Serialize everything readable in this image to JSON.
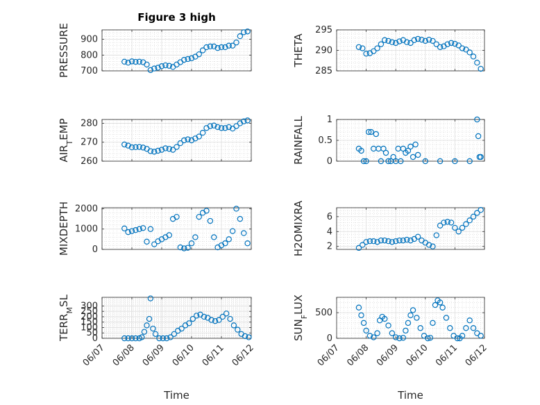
{
  "figure": {
    "title": "Figure 3 high",
    "marker_color": "#0072BD",
    "background": "#ffffff"
  },
  "chart_data": [
    {
      "type": "scatter",
      "ylabel": "PRESSURE",
      "xlabel": "",
      "title": "Figure 3 high",
      "ylim": [
        700,
        960
      ],
      "yticks": [
        "700",
        "800",
        "900"
      ],
      "xticks": [],
      "grid": true,
      "x": [
        "06/07 18:00",
        "06/07 21:00",
        "06/08 00:00",
        "06/08 03:00",
        "06/08 06:00",
        "06/08 09:00",
        "06/08 12:00",
        "06/08 15:00",
        "06/08 18:00",
        "06/08 21:00",
        "06/09 00:00",
        "06/09 03:00",
        "06/09 06:00",
        "06/09 09:00",
        "06/09 12:00",
        "06/09 15:00",
        "06/09 18:00",
        "06/09 21:00",
        "06/10 00:00",
        "06/10 03:00",
        "06/10 06:00",
        "06/10 09:00",
        "06/10 12:00",
        "06/10 15:00",
        "06/10 18:00",
        "06/10 21:00",
        "06/11 00:00",
        "06/11 03:00",
        "06/11 06:00",
        "06/11 09:00",
        "06/11 12:00",
        "06/11 15:00",
        "06/11 18:00",
        "06/11 21:00"
      ],
      "y": [
        758,
        752,
        760,
        757,
        758,
        755,
        740,
        705,
        715,
        720,
        730,
        735,
        732,
        725,
        740,
        755,
        770,
        775,
        780,
        790,
        805,
        830,
        850,
        855,
        855,
        845,
        850,
        850,
        860,
        860,
        880,
        920,
        945,
        950
      ]
    },
    {
      "type": "scatter",
      "ylabel": "THETA",
      "xlabel": "",
      "ylim": [
        285,
        295
      ],
      "yticks": [
        "285",
        "290",
        "295"
      ],
      "xticks": [],
      "grid": true,
      "x": [
        "06/07 18:00",
        "06/07 21:00",
        "06/08 00:00",
        "06/08 03:00",
        "06/08 06:00",
        "06/08 09:00",
        "06/08 12:00",
        "06/08 15:00",
        "06/08 18:00",
        "06/08 21:00",
        "06/09 00:00",
        "06/09 03:00",
        "06/09 06:00",
        "06/09 09:00",
        "06/09 12:00",
        "06/09 15:00",
        "06/09 18:00",
        "06/09 21:00",
        "06/10 00:00",
        "06/10 03:00",
        "06/10 06:00",
        "06/10 09:00",
        "06/10 12:00",
        "06/10 15:00",
        "06/10 18:00",
        "06/10 21:00",
        "06/11 00:00",
        "06/11 03:00",
        "06/11 06:00",
        "06/11 09:00",
        "06/11 12:00",
        "06/11 15:00",
        "06/11 18:00",
        "06/11 21:00"
      ],
      "y": [
        290.8,
        290.5,
        289.2,
        289.3,
        289.8,
        290.5,
        291.5,
        292.5,
        292.3,
        292,
        291.8,
        292.2,
        292.5,
        292,
        291.8,
        292.5,
        292.8,
        292.6,
        292.3,
        292.6,
        292.3,
        291.5,
        290.8,
        291,
        291.5,
        291.8,
        291.6,
        291.2,
        290.5,
        290.2,
        289.5,
        288.5,
        287.0,
        285.5
      ]
    },
    {
      "type": "scatter",
      "ylabel": "AIR_TEMP",
      "xlabel": "",
      "ylim": [
        260,
        282
      ],
      "yticks": [
        "260",
        "270",
        "280"
      ],
      "xticks": [],
      "grid": true,
      "x": [
        "06/07 18:00",
        "06/07 21:00",
        "06/08 00:00",
        "06/08 03:00",
        "06/08 06:00",
        "06/08 09:00",
        "06/08 12:00",
        "06/08 15:00",
        "06/08 18:00",
        "06/08 21:00",
        "06/09 00:00",
        "06/09 03:00",
        "06/09 06:00",
        "06/09 09:00",
        "06/09 12:00",
        "06/09 15:00",
        "06/09 18:00",
        "06/09 21:00",
        "06/10 00:00",
        "06/10 03:00",
        "06/10 06:00",
        "06/10 09:00",
        "06/10 12:00",
        "06/10 15:00",
        "06/10 18:00",
        "06/10 21:00",
        "06/11 00:00",
        "06/11 03:00",
        "06/11 06:00",
        "06/11 09:00",
        "06/11 12:00",
        "06/11 15:00",
        "06/11 18:00",
        "06/11 21:00"
      ],
      "y": [
        268.8,
        268.2,
        267.3,
        267.4,
        267.5,
        267.2,
        266.5,
        265.3,
        265.0,
        265.5,
        266.0,
        266.8,
        266.5,
        266.0,
        267.5,
        269.5,
        271.0,
        271.5,
        271.0,
        272.0,
        273.0,
        275.0,
        277.5,
        278.5,
        278.8,
        278.0,
        277.5,
        277.5,
        278.0,
        277.2,
        278.5,
        280.0,
        281.0,
        281.5
      ]
    },
    {
      "type": "scatter",
      "ylabel": "RAINFALL",
      "xlabel": "",
      "ylim": [
        0,
        1
      ],
      "yticks": [
        "0",
        "0.5",
        "1"
      ],
      "xticks": [],
      "grid": true,
      "x": [
        "06/07 18:00",
        "06/07 20:00",
        "06/07 22:00",
        "06/08 00:00",
        "06/08 02:00",
        "06/08 04:00",
        "06/08 06:00",
        "06/08 08:00",
        "06/08 10:00",
        "06/08 12:00",
        "06/08 14:00",
        "06/08 16:00",
        "06/08 18:00",
        "06/08 20:00",
        "06/08 22:00",
        "06/09 00:00",
        "06/09 02:00",
        "06/09 04:00",
        "06/09 06:00",
        "06/09 08:00",
        "06/09 10:00",
        "06/09 12:00",
        "06/09 14:00",
        "06/09 16:00",
        "06/09 18:00",
        "06/10 00:00",
        "06/10 12:00",
        "06/11 00:00",
        "06/11 12:00",
        "06/11 18:00",
        "06/11 19:00",
        "06/11 20:00",
        "06/11 21:00"
      ],
      "y": [
        0.3,
        0.25,
        0.0,
        0.0,
        0.7,
        0.7,
        0.3,
        0.65,
        0.3,
        0.0,
        0.3,
        0.2,
        0.0,
        0.0,
        0.1,
        0.0,
        0.3,
        0.0,
        0.3,
        0.2,
        0.25,
        0.35,
        0.1,
        0.4,
        0.15,
        0.0,
        0.0,
        0.0,
        0.0,
        1.0,
        0.6,
        0.1,
        0.1
      ]
    },
    {
      "type": "scatter",
      "ylabel": "MIXDEPTH",
      "xlabel": "",
      "ylim": [
        0,
        2050
      ],
      "yticks": [
        "0",
        "1000",
        "2000"
      ],
      "xticks": [],
      "grid": true,
      "x": [
        "06/07 18:00",
        "06/07 21:00",
        "06/08 00:00",
        "06/08 03:00",
        "06/08 06:00",
        "06/08 09:00",
        "06/08 12:00",
        "06/08 15:00",
        "06/08 18:00",
        "06/08 21:00",
        "06/09 00:00",
        "06/09 03:00",
        "06/09 06:00",
        "06/09 09:00",
        "06/09 12:00",
        "06/09 15:00",
        "06/09 18:00",
        "06/09 21:00",
        "06/10 00:00",
        "06/10 03:00",
        "06/10 06:00",
        "06/10 09:00",
        "06/10 12:00",
        "06/10 15:00",
        "06/10 18:00",
        "06/10 21:00",
        "06/11 00:00",
        "06/11 03:00",
        "06/11 06:00",
        "06/11 09:00",
        "06/11 12:00",
        "06/11 15:00",
        "06/11 18:00",
        "06/11 21:00"
      ],
      "y": [
        1030,
        850,
        900,
        950,
        1000,
        1050,
        380,
        1000,
        250,
        400,
        500,
        600,
        700,
        1500,
        1600,
        100,
        50,
        80,
        300,
        600,
        1600,
        1800,
        1900,
        1400,
        600,
        100,
        200,
        300,
        500,
        900,
        2000,
        1500,
        800,
        300
      ]
    },
    {
      "type": "scatter",
      "ylabel": "H2OMIXRA",
      "xlabel": "",
      "ylim": [
        1.6,
        7.2
      ],
      "yticks": [
        "2",
        "4",
        "6"
      ],
      "xticks": [],
      "grid": true,
      "x": [
        "06/07 18:00",
        "06/07 21:00",
        "06/08 00:00",
        "06/08 03:00",
        "06/08 06:00",
        "06/08 09:00",
        "06/08 12:00",
        "06/08 15:00",
        "06/08 18:00",
        "06/08 21:00",
        "06/09 00:00",
        "06/09 03:00",
        "06/09 06:00",
        "06/09 09:00",
        "06/09 12:00",
        "06/09 15:00",
        "06/09 18:00",
        "06/09 21:00",
        "06/10 00:00",
        "06/10 03:00",
        "06/10 06:00",
        "06/10 09:00",
        "06/10 12:00",
        "06/10 15:00",
        "06/10 18:00",
        "06/10 21:00",
        "06/11 00:00",
        "06/11 03:00",
        "06/11 06:00",
        "06/11 09:00",
        "06/11 12:00",
        "06/11 15:00",
        "06/11 18:00",
        "06/11 21:00"
      ],
      "y": [
        1.8,
        2.2,
        2.6,
        2.7,
        2.7,
        2.6,
        2.8,
        2.8,
        2.7,
        2.6,
        2.7,
        2.8,
        2.8,
        2.9,
        2.8,
        3.0,
        3.3,
        2.8,
        2.5,
        2.2,
        2.0,
        3.5,
        4.8,
        5.2,
        5.3,
        5.2,
        4.5,
        4.0,
        4.5,
        5.0,
        5.5,
        6.0,
        6.5,
        6.9
      ]
    },
    {
      "type": "scatter",
      "ylabel": "TERR_MSL",
      "xlabel": "Time",
      "ylim": [
        0,
        380
      ],
      "yticks": [
        "0",
        "50",
        "100",
        "150",
        "200",
        "250",
        "300"
      ],
      "xticks": [
        "06/07",
        "06/08",
        "06/09",
        "06/10",
        "06/11",
        "06/12"
      ],
      "grid": true,
      "x": [
        "06/07 18:00",
        "06/07 21:00",
        "06/08 00:00",
        "06/08 03:00",
        "06/08 06:00",
        "06/08 08:00",
        "06/08 10:00",
        "06/08 12:00",
        "06/08 14:00",
        "06/08 15:00",
        "06/08 17:00",
        "06/08 19:00",
        "06/08 22:00",
        "06/09 01:00",
        "06/09 04:00",
        "06/09 07:00",
        "06/09 10:00",
        "06/09 13:00",
        "06/09 16:00",
        "06/09 19:00",
        "06/09 22:00",
        "06/10 01:00",
        "06/10 04:00",
        "06/10 07:00",
        "06/10 10:00",
        "06/10 13:00",
        "06/10 16:00",
        "06/10 19:00",
        "06/10 22:00",
        "06/11 01:00",
        "06/11 04:00",
        "06/11 07:00",
        "06/11 10:00",
        "06/11 13:00",
        "06/11 16:00",
        "06/11 19:00",
        "06/11 22:00"
      ],
      "y": [
        0,
        0,
        0,
        0,
        0,
        10,
        60,
        120,
        180,
        370,
        90,
        40,
        0,
        0,
        0,
        10,
        40,
        70,
        90,
        120,
        140,
        180,
        210,
        220,
        200,
        190,
        170,
        160,
        170,
        200,
        230,
        180,
        120,
        80,
        40,
        20,
        10
      ]
    },
    {
      "type": "scatter",
      "ylabel": "SUN_FLUX",
      "xlabel": "Time",
      "ylim": [
        0,
        800
      ],
      "yticks": [
        "0",
        "500"
      ],
      "xticks": [
        "06/07",
        "06/08",
        "06/09",
        "06/10",
        "06/11",
        "06/12"
      ],
      "grid": true,
      "x": [
        "06/07 18:00",
        "06/07 20:00",
        "06/07 22:00",
        "06/08 00:00",
        "06/08 03:00",
        "06/08 06:00",
        "06/08 09:00",
        "06/08 11:00",
        "06/08 13:00",
        "06/08 15:00",
        "06/08 18:00",
        "06/08 21:00",
        "06/09 00:00",
        "06/09 03:00",
        "06/09 06:00",
        "06/09 08:00",
        "06/09 10:00",
        "06/09 12:00",
        "06/09 14:00",
        "06/09 17:00",
        "06/09 20:00",
        "06/09 23:00",
        "06/10 02:00",
        "06/10 04:00",
        "06/10 06:00",
        "06/10 08:00",
        "06/10 10:00",
        "06/10 12:00",
        "06/10 14:00",
        "06/10 17:00",
        "06/10 20:00",
        "06/10 23:00",
        "06/11 02:00",
        "06/11 04:00",
        "06/11 06:00",
        "06/11 09:00",
        "06/11 12:00",
        "06/11 15:00",
        "06/11 18:00",
        "06/11 21:00"
      ],
      "y": [
        600,
        450,
        300,
        150,
        50,
        20,
        100,
        350,
        420,
        380,
        250,
        100,
        20,
        0,
        10,
        150,
        300,
        450,
        550,
        400,
        200,
        50,
        0,
        10,
        300,
        650,
        740,
        700,
        600,
        400,
        200,
        50,
        0,
        0,
        50,
        200,
        350,
        200,
        100,
        50
      ]
    }
  ]
}
